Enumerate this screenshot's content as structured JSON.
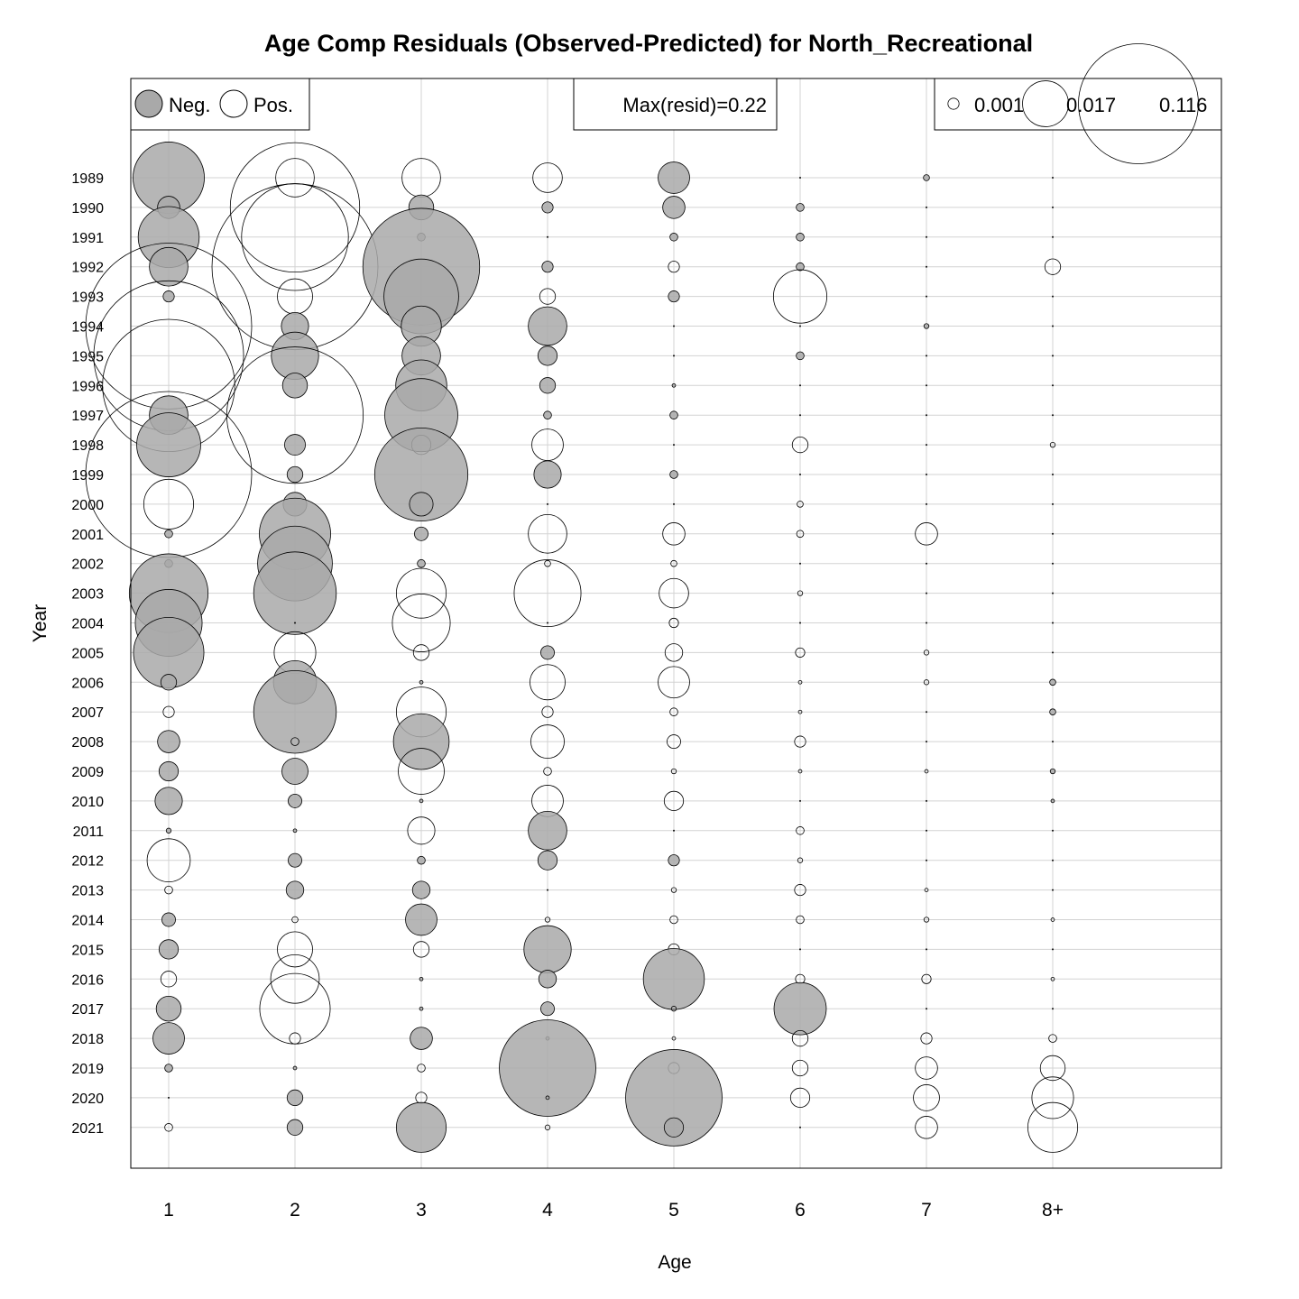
{
  "chart_data": {
    "type": "scatter",
    "subtype": "bubble",
    "title": "Age Comp Residuals (Observed-Predicted) for North_Recreational",
    "xlabel": "Age",
    "ylabel": "Year",
    "categories": [
      "1",
      "2",
      "3",
      "4",
      "5",
      "6",
      "7",
      "8+"
    ],
    "years": [
      1989,
      1990,
      1991,
      1992,
      1993,
      1994,
      1995,
      1996,
      1997,
      1998,
      1999,
      2000,
      2001,
      2002,
      2003,
      2004,
      2005,
      2006,
      2007,
      2008,
      2009,
      2010,
      2011,
      2012,
      2013,
      2014,
      2015,
      2016,
      2017,
      2018,
      2019,
      2020,
      2021
    ],
    "grid": true,
    "legend_sign": {
      "neg_label": "Neg.",
      "pos_label": "Pos.",
      "placement": "top-left"
    },
    "legend_max": {
      "text": "Max(resid)=0.22",
      "placement": "top-center"
    },
    "legend_size": {
      "placement": "top-right",
      "labels": [
        "0.001",
        "0.017",
        "0.116"
      ],
      "values": [
        0.001,
        0.017,
        0.116
      ]
    },
    "colors": {
      "negative_fill": "#a9a9a9",
      "positive_fill": "none",
      "stroke": "#000000",
      "grid": "#d3d3d3"
    },
    "residuals": {
      "1": [
        -0.041,
        -0.004,
        -0.03,
        -0.012,
        -0.001,
        0.222,
        0.181,
        0.141,
        -0.012,
        -0.033,
        0.222,
        0.02,
        -0.0005,
        -0.0005,
        -0.05,
        -0.036,
        -0.04,
        -0.002,
        0.001,
        -0.004,
        -0.003,
        -0.006,
        -0.0002,
        0.015,
        0.0005,
        -0.0015,
        -0.003,
        0.002,
        -0.005,
        -0.008,
        -0.0005,
        0,
        0.0005
      ],
      "2": [
        0.012,
        0.135,
        0.092,
        0.222,
        0.01,
        -0.006,
        -0.018,
        -0.005,
        0.15,
        -0.0035,
        -0.002,
        -0.0045,
        -0.041,
        -0.045,
        -0.055,
        0,
        0.014,
        -0.015,
        -0.055,
        0.0005,
        -0.0055,
        -0.0015,
        -0.0001,
        -0.0015,
        -0.0025,
        0.0003,
        0.01,
        0.019,
        0.04,
        0.001,
        -0.0001,
        -0.002,
        -0.002
      ],
      "3": [
        0.012,
        -0.005,
        -0.0005,
        -0.11,
        -0.045,
        -0.013,
        -0.012,
        -0.021,
        -0.043,
        0.003,
        -0.07,
        -0.0045,
        -0.0015,
        -0.0005,
        0.02,
        0.027,
        0.002,
        -0.0001,
        0.02,
        -0.025,
        0.017,
        -0.0001,
        0.006,
        -0.0005,
        -0.0025,
        -0.008,
        0.002,
        -0.0001,
        -0.0001,
        -0.004,
        0.0005,
        0.001,
        -0.02
      ],
      "4": [
        0.007,
        -0.001,
        0,
        -0.001,
        0.002,
        -0.012,
        -0.003,
        -0.002,
        -0.0005,
        0.008,
        -0.006,
        0,
        0.012,
        0.0003,
        0.036,
        0,
        -0.0015,
        0.01,
        0.001,
        0.009,
        0.0005,
        0.008,
        -0.012,
        -0.003,
        0,
        0.0002,
        -0.018,
        -0.0025,
        -0.0015,
        -0.0001,
        -0.075,
        -0.0001,
        0.0002
      ],
      "5": [
        -0.008,
        -0.004,
        -0.0005,
        0.001,
        -0.001,
        0,
        0,
        -0.0001,
        -0.0005,
        0,
        -0.0005,
        0,
        0.004,
        0.0003,
        0.007,
        0.0007,
        0.0025,
        0.008,
        0.0005,
        0.0015,
        0.0002,
        0.003,
        0,
        -0.001,
        0.0002,
        0.0005,
        0.001,
        -0.03,
        0.0002,
        0.0001,
        0.001,
        -0.075,
        -0.003
      ],
      "6": [
        0,
        -0.0005,
        -0.0005,
        -0.0005,
        0.023,
        0,
        -0.0005,
        0,
        0,
        0.002,
        0,
        0.0003,
        0.0004,
        0,
        0.0002,
        0,
        0.0007,
        0.0001,
        0.0001,
        0.001,
        0.0001,
        0,
        0.0005,
        0.0002,
        0.001,
        0.0005,
        0,
        0.0007,
        -0.022,
        0.002,
        0.002,
        0.003,
        0
      ],
      "7": [
        -0.0003,
        0,
        0,
        0,
        0,
        -0.0002,
        0,
        0,
        0,
        0,
        0,
        0,
        0.004,
        0,
        0,
        0,
        0.0002,
        0.0002,
        0,
        0,
        0.0001,
        0,
        0,
        0,
        0.0001,
        0.0002,
        0,
        0.0007,
        0,
        0.001,
        0.004,
        0.0055,
        0.004
      ],
      "8+": [
        0,
        0,
        0,
        0.002,
        0,
        0,
        0,
        0,
        0,
        0.0002,
        0,
        0,
        0,
        0,
        0,
        0,
        0,
        -0.0003,
        -0.0003,
        0,
        -0.0002,
        -0.0001,
        0,
        0,
        0,
        0.0001,
        0,
        0.0001,
        0,
        0.0005,
        0.005,
        0.014,
        0.02
      ]
    }
  }
}
